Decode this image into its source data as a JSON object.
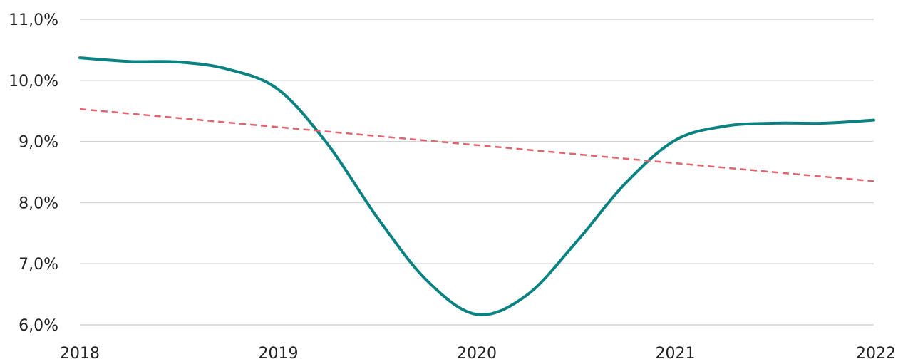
{
  "chart_data": {
    "type": "line",
    "title": "",
    "xlabel": "",
    "ylabel": "",
    "x": [
      "2018",
      "2019",
      "2020",
      "2021",
      "2022"
    ],
    "xlim": [
      2018,
      2022
    ],
    "ylim": [
      6.0,
      11.0
    ],
    "yticks": [
      "6,0%",
      "7,0%",
      "8,0%",
      "9,0%",
      "10,0%",
      "11,0%"
    ],
    "grid": true,
    "legend": "none",
    "series": [
      {
        "style": "solid",
        "color": "#0a8282",
        "points": [
          [
            2018.0,
            10.37
          ],
          [
            2018.25,
            10.31
          ],
          [
            2018.5,
            10.3
          ],
          [
            2018.75,
            10.18
          ],
          [
            2019.0,
            9.85
          ],
          [
            2019.25,
            8.95
          ],
          [
            2019.5,
            7.75
          ],
          [
            2019.75,
            6.72
          ],
          [
            2020.0,
            6.17
          ],
          [
            2020.25,
            6.48
          ],
          [
            2020.5,
            7.35
          ],
          [
            2020.75,
            8.32
          ],
          [
            2021.0,
            9.02
          ],
          [
            2021.25,
            9.25
          ],
          [
            2021.5,
            9.3
          ],
          [
            2021.75,
            9.3
          ],
          [
            2022.0,
            9.35
          ]
        ]
      },
      {
        "style": "dashed",
        "color": "#e0636e",
        "points": [
          [
            2018.0,
            9.53
          ],
          [
            2022.0,
            8.35
          ]
        ]
      }
    ]
  }
}
